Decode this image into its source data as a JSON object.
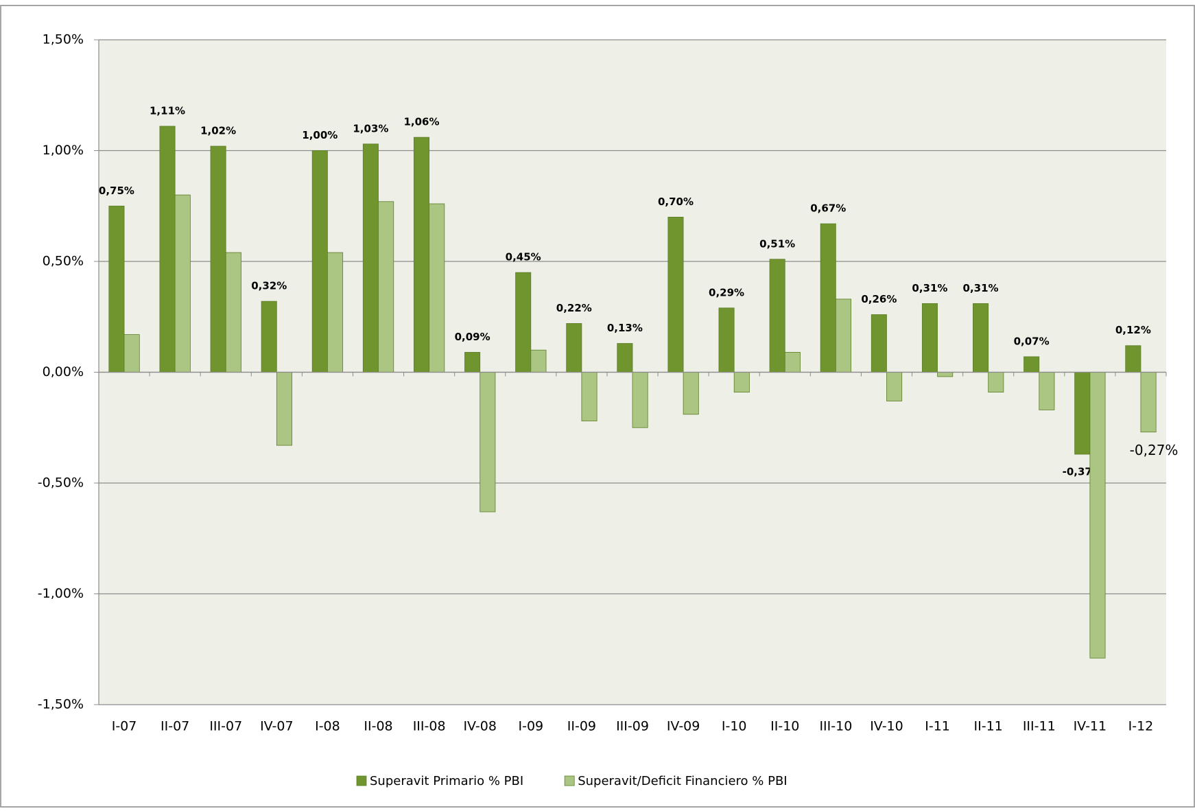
{
  "chart_data": {
    "type": "bar",
    "categories": [
      "I-07",
      "II-07",
      "III-07",
      "IV-07",
      "I-08",
      "II-08",
      "III-08",
      "IV-08",
      "I-09",
      "II-09",
      "III-09",
      "IV-09",
      "I-10",
      "II-10",
      "III-10",
      "IV-10",
      "I-11",
      "II-11",
      "III-11",
      "IV-11",
      "I-12"
    ],
    "series": [
      {
        "name": "Superavit Primario % PBI",
        "color": "#70952f",
        "values": [
          0.75,
          1.11,
          1.02,
          0.32,
          1.0,
          1.03,
          1.06,
          0.09,
          0.45,
          0.22,
          0.13,
          0.7,
          0.29,
          0.51,
          0.67,
          0.26,
          0.31,
          0.31,
          0.07,
          -0.37,
          0.12
        ],
        "value_labels": [
          "0,75%",
          "1,11%",
          "1,02%",
          "0,32%",
          "1,00%",
          "1,03%",
          "1,06%",
          "0,09%",
          "0,45%",
          "0,22%",
          "0,13%",
          "0,70%",
          "0,29%",
          "0,51%",
          "0,67%",
          "0,26%",
          "0,31%",
          "0,31%",
          "0,07%",
          "-0,37%",
          "0,12%"
        ]
      },
      {
        "name": "Superavit/Deficit Financiero % PBI",
        "color": "#abc582",
        "values": [
          0.17,
          0.8,
          0.54,
          -0.33,
          0.54,
          0.77,
          0.76,
          -0.63,
          0.1,
          -0.22,
          -0.25,
          -0.19,
          -0.09,
          0.09,
          0.33,
          -0.13,
          -0.02,
          -0.09,
          -0.17,
          -1.29,
          -0.27
        ],
        "value_labels": [
          null,
          null,
          null,
          null,
          null,
          null,
          null,
          null,
          null,
          null,
          null,
          null,
          null,
          null,
          null,
          null,
          null,
          null,
          null,
          null,
          "-0,27%"
        ]
      }
    ],
    "ylim": [
      -1.5,
      1.5
    ],
    "yticks": [
      {
        "value": -1.5,
        "label": "-1,50%"
      },
      {
        "value": -1.0,
        "label": "-1,00%"
      },
      {
        "value": -0.5,
        "label": "-0,50%"
      },
      {
        "value": 0,
        "label": "0,00%"
      },
      {
        "value": 0.5,
        "label": "0,50%"
      },
      {
        "value": 1.0,
        "label": "1,00%"
      },
      {
        "value": 1.5,
        "label": "1,50%"
      }
    ],
    "grid": true,
    "legend": "bottom"
  }
}
